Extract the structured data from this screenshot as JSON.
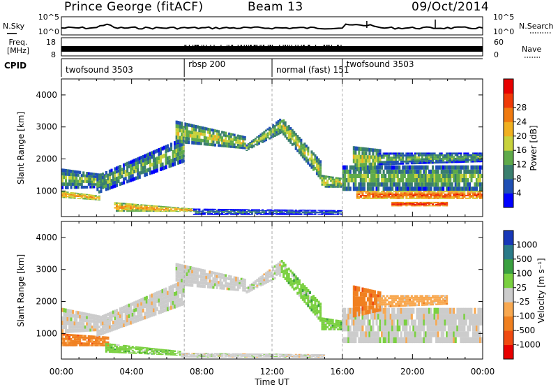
{
  "header": {
    "station": "Prince George (fitACF)",
    "beam": "Beam 13",
    "date": "09/Oct/2014"
  },
  "strips": {
    "nsky_label": "N.Sky",
    "nsearch_label": "N.Search",
    "noise_ticks": [
      "10^5",
      "10^0"
    ],
    "freq_label": "Freq.",
    "freq_unit": "[MHz]",
    "freq_ticks": [
      "18",
      "8"
    ],
    "nave_label": "Nave",
    "nave_ticks": [
      "60",
      "0"
    ],
    "cpid_label": "CPID"
  },
  "cpid_segments": [
    {
      "label": "twofsound 3503",
      "start": 0.0
    },
    {
      "label": "rbsp 200",
      "start": 7.0
    },
    {
      "label": "normal (fast) 151",
      "start": 12.0
    },
    {
      "label": "twofsound 3503",
      "start": 16.0
    }
  ],
  "colors": {
    "power": [
      "#0000ff",
      "#1f4fb4",
      "#3a7f6e",
      "#5faa4a",
      "#c8d23c",
      "#f0b020",
      "#f07a10",
      "#f03a08",
      "#e80000"
    ],
    "velocity": [
      "#1838b8",
      "#2a7a88",
      "#3aa040",
      "#7ad040",
      "#cccccc",
      "#f8a850",
      "#f08020",
      "#f04a10",
      "#e80000"
    ]
  },
  "chart_data": [
    {
      "type": "heatmap",
      "panel": "power",
      "xlabel": "Time UT",
      "ylabel": "Slant Range [km]",
      "x_ticks": [
        "00:00",
        "04:00",
        "08:00",
        "12:00",
        "16:00",
        "20:00",
        "00:00"
      ],
      "xlim_hours": [
        0,
        24
      ],
      "ylim": [
        200,
        4500
      ],
      "y_ticks": [
        1000,
        2000,
        3000,
        4000
      ],
      "colorbar_label": "Power [dB]",
      "colorbar_ticks": [
        "4",
        "8",
        "12",
        "16",
        "20",
        "24",
        "28"
      ],
      "scale": [
        0,
        30
      ],
      "mode_boundaries_hours": [
        7.0,
        12.0,
        16.0
      ],
      "bands": [
        {
          "start": 0.0,
          "end": 2.7,
          "lo": [
            1050,
            1100
          ],
          "hi": [
            1700,
            1500
          ],
          "value": 12
        },
        {
          "start": 0.0,
          "end": 2.2,
          "lo": [
            780,
            700
          ],
          "hi": [
            1000,
            850
          ],
          "value": 20
        },
        {
          "start": 2.0,
          "end": 7.0,
          "lo": [
            900,
            1900
          ],
          "hi": [
            1500,
            2700
          ],
          "value": 11
        },
        {
          "start": 6.5,
          "end": 10.5,
          "lo": [
            2500,
            2300
          ],
          "hi": [
            3200,
            2700
          ],
          "value": 14
        },
        {
          "start": 10.5,
          "end": 12.5,
          "lo": [
            2250,
            2800
          ],
          "hi": [
            2450,
            3300
          ],
          "value": 13
        },
        {
          "start": 12.5,
          "end": 14.8,
          "lo": [
            2800,
            1300
          ],
          "hi": [
            3300,
            1900
          ],
          "value": 14
        },
        {
          "start": 14.8,
          "end": 16.0,
          "lo": [
            1100,
            1100
          ],
          "hi": [
            1500,
            1400
          ],
          "value": 15
        },
        {
          "start": 3.0,
          "end": 7.5,
          "lo": [
            350,
            350
          ],
          "hi": [
            650,
            450
          ],
          "value": 20
        },
        {
          "start": 7.5,
          "end": 16.0,
          "lo": [
            250,
            250
          ],
          "hi": [
            450,
            400
          ],
          "value": 6
        },
        {
          "start": 16.0,
          "end": 24.0,
          "lo": [
            1000,
            1000
          ],
          "hi": [
            1800,
            1800
          ],
          "value": 12
        },
        {
          "start": 16.8,
          "end": 24.0,
          "lo": [
            750,
            750
          ],
          "hi": [
            1000,
            1000
          ],
          "value": 25
        },
        {
          "start": 18.8,
          "end": 22.0,
          "lo": [
            520,
            520
          ],
          "hi": [
            660,
            660
          ],
          "value": 28
        },
        {
          "start": 16.6,
          "end": 18.2,
          "lo": [
            1600,
            1700
          ],
          "hi": [
            2400,
            2300
          ],
          "value": 15
        },
        {
          "start": 18.0,
          "end": 24.0,
          "lo": [
            1800,
            1900
          ],
          "hi": [
            2200,
            2200
          ],
          "value": 10
        }
      ]
    },
    {
      "type": "heatmap",
      "panel": "velocity",
      "xlabel": "Time UT",
      "ylabel": "Slant Range [km]",
      "x_ticks": [
        "00:00",
        "04:00",
        "08:00",
        "12:00",
        "16:00",
        "20:00",
        "00:00"
      ],
      "xlim_hours": [
        0,
        24
      ],
      "ylim": [
        200,
        4500
      ],
      "y_ticks": [
        1000,
        2000,
        3000,
        4000
      ],
      "colorbar_label": "Velocity [m s⁻¹]",
      "colorbar_ticks": [
        "1000",
        "500",
        "100",
        "25",
        "-25",
        "-100",
        "-500",
        "-1000"
      ],
      "scale": [
        -1000,
        1000
      ],
      "mode_boundaries_hours": [
        7.0,
        12.0,
        16.0
      ],
      "bands": [
        {
          "start": 0.0,
          "end": 2.7,
          "lo": [
            1000,
            1100
          ],
          "hi": [
            1800,
            1500
          ],
          "class": 4
        },
        {
          "start": 0.0,
          "end": 2.7,
          "lo": [
            600,
            600
          ],
          "hi": [
            1000,
            900
          ],
          "class": 6
        },
        {
          "start": 2.0,
          "end": 7.0,
          "lo": [
            900,
            1900
          ],
          "hi": [
            1500,
            2700
          ],
          "class": 4
        },
        {
          "start": 6.5,
          "end": 10.5,
          "lo": [
            2500,
            2300
          ],
          "hi": [
            3200,
            2700
          ],
          "class": 4
        },
        {
          "start": 10.5,
          "end": 12.5,
          "lo": [
            2250,
            2800
          ],
          "hi": [
            2450,
            3300
          ],
          "class": 4
        },
        {
          "start": 12.5,
          "end": 14.8,
          "lo": [
            2800,
            1300
          ],
          "hi": [
            3300,
            1900
          ],
          "class": 3
        },
        {
          "start": 14.8,
          "end": 16.0,
          "lo": [
            1100,
            1100
          ],
          "hi": [
            1500,
            1400
          ],
          "class": 3
        },
        {
          "start": 2.5,
          "end": 6.8,
          "lo": [
            400,
            300
          ],
          "hi": [
            700,
            450
          ],
          "class": 3
        },
        {
          "start": 6.8,
          "end": 15.0,
          "lo": [
            250,
            250
          ],
          "hi": [
            400,
            350
          ],
          "class": 4
        },
        {
          "start": 16.0,
          "end": 24.0,
          "lo": [
            700,
            700
          ],
          "hi": [
            1800,
            1800
          ],
          "class": 4
        },
        {
          "start": 16.6,
          "end": 18.2,
          "lo": [
            1500,
            1700
          ],
          "hi": [
            2500,
            2300
          ],
          "class": 6
        },
        {
          "start": 18.0,
          "end": 22.0,
          "lo": [
            1800,
            1900
          ],
          "hi": [
            2200,
            2200
          ],
          "class": 5
        }
      ]
    }
  ]
}
